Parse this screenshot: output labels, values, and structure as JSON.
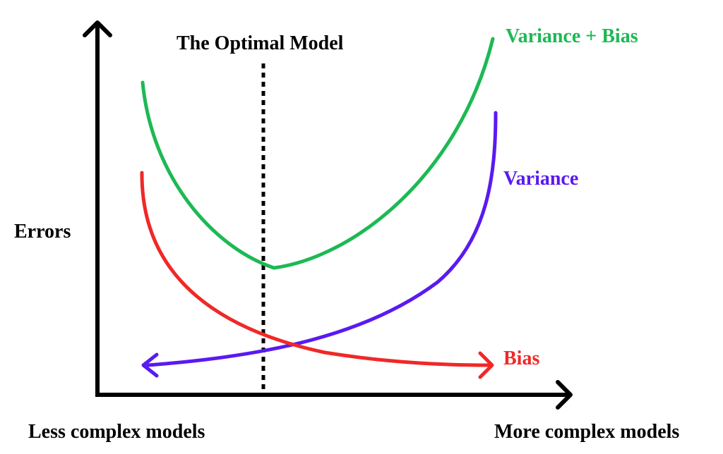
{
  "labels": {
    "optimal": "The Optimal Model",
    "total": "Variance + Bias",
    "variance": "Variance",
    "bias": "Bias",
    "y_axis": "Errors",
    "x_left": "Less complex models",
    "x_right": "More complex models"
  },
  "colors": {
    "axis": "#000000",
    "total": "#1db954",
    "variance": "#5a1af0",
    "bias": "#f02828",
    "optimal_line": "#000000"
  }
}
